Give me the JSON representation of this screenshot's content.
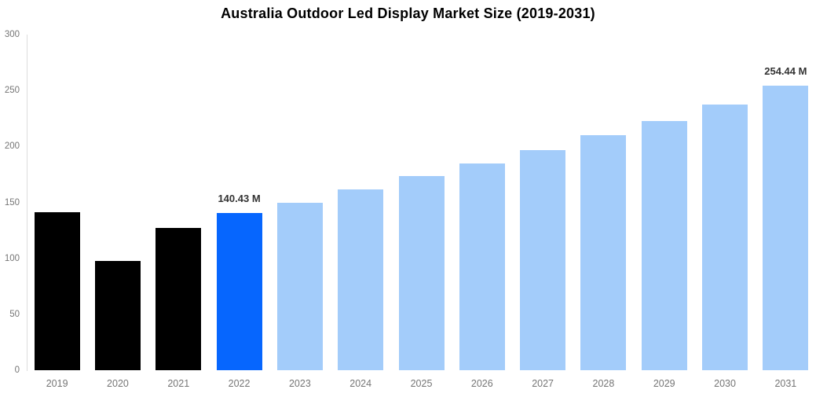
{
  "chart_data": {
    "type": "bar",
    "title": "Australia Outdoor Led Display Market Size (2019-2031)",
    "unit": "M",
    "categories": [
      "2019",
      "2020",
      "2021",
      "2022",
      "2023",
      "2024",
      "2025",
      "2026",
      "2027",
      "2028",
      "2029",
      "2030",
      "2031"
    ],
    "series": [
      {
        "name": "Market Size",
        "values": [
          141,
          98,
          127,
          140.43,
          150,
          161.5,
          173.5,
          185,
          197,
          210,
          223,
          237.5,
          254.44
        ]
      }
    ],
    "segments": [
      "historical",
      "historical",
      "historical",
      "current",
      "forecast",
      "forecast",
      "forecast",
      "forecast",
      "forecast",
      "forecast",
      "forecast",
      "forecast",
      "forecast"
    ],
    "colors": {
      "historical": "#000000",
      "current": "#0666FE",
      "forecast": "#A3CCFA"
    },
    "axis_style": {
      "tick_label_color": "#757575",
      "axis_line_color": "#DCDCDC",
      "value_label_color": "#333333",
      "title_color": "#000000"
    },
    "ylim": [
      0,
      300
    ],
    "yticks": [
      0,
      50,
      100,
      150,
      200,
      250,
      300
    ],
    "xlabel": "",
    "ylabel": "",
    "grid": false,
    "legend": false,
    "annotations": [
      {
        "category": "2022",
        "label": "140.43 M"
      },
      {
        "category": "2031",
        "label": "254.44 M"
      }
    ]
  }
}
